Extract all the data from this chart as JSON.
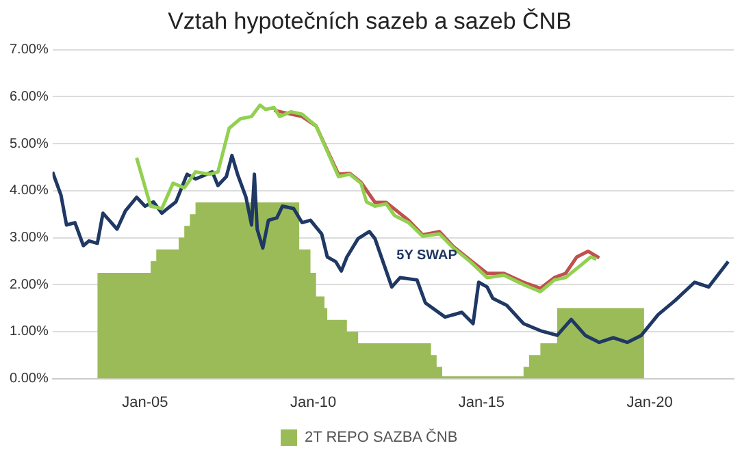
{
  "chart_data": {
    "type": "line",
    "title": "Vztah hypotečních sazeb a sazeb ČNB",
    "xlim": [
      "2002-04",
      "2022-07"
    ],
    "xticks": [
      {
        "value": "2005-01",
        "label": "Jan-05"
      },
      {
        "value": "2010-01",
        "label": "Jan-10"
      },
      {
        "value": "2015-01",
        "label": "Jan-15"
      },
      {
        "value": "2020-01",
        "label": "Jan-20"
      }
    ],
    "ylim": [
      0,
      7
    ],
    "yticks": [
      {
        "value": 0,
        "label": "0.00%"
      },
      {
        "value": 1,
        "label": "1.00%"
      },
      {
        "value": 2,
        "label": "2.00%"
      },
      {
        "value": 3,
        "label": "3.00%"
      },
      {
        "value": 4,
        "label": "4.00%"
      },
      {
        "value": 5,
        "label": "5.00%"
      },
      {
        "value": 6,
        "label": "6.00%"
      },
      {
        "value": 7,
        "label": "7.00%"
      }
    ],
    "grid": "y",
    "legend": "bottom",
    "annotations": [
      "5Y SWAP"
    ],
    "series": [
      {
        "name": "2T REPO SAZBA ČNB",
        "type": "area",
        "color": "#9bbb59",
        "x": [
          "2003-08",
          "2003-08",
          "2005-03",
          "2005-03",
          "2005-05",
          "2005-05",
          "2006-01",
          "2006-01",
          "2006-03",
          "2006-03",
          "2006-05",
          "2006-05",
          "2006-07",
          "2006-07",
          "2009-08",
          "2009-08",
          "2009-12",
          "2009-12",
          "2010-02",
          "2010-02",
          "2010-05",
          "2010-05",
          "2010-06",
          "2010-06",
          "2011-01",
          "2011-01",
          "2011-05",
          "2011-05",
          "2013-07",
          "2013-07",
          "2013-09",
          "2013-09",
          "2013-11",
          "2013-11",
          "2016-04",
          "2016-04",
          "2016-06",
          "2016-06",
          "2016-10",
          "2016-10",
          "2017-04",
          "2017-04",
          "2019-11",
          "2019-11"
        ],
        "values": [
          0,
          2.25,
          2.25,
          2.5,
          2.5,
          2.75,
          2.75,
          3.0,
          3.0,
          3.25,
          3.25,
          3.5,
          3.5,
          3.75,
          3.75,
          2.75,
          2.75,
          2.25,
          2.25,
          1.75,
          1.75,
          1.5,
          1.5,
          1.25,
          1.25,
          1.0,
          1.0,
          0.75,
          0.75,
          0.5,
          0.5,
          0.25,
          0.25,
          0.05,
          0.05,
          0.25,
          0.25,
          0.5,
          0.5,
          0.75,
          0.75,
          1.5,
          1.5,
          0
        ]
      },
      {
        "color": "#1f3864",
        "x": [
          "2002-04",
          "2002-07",
          "2002-09",
          "2002-12",
          "2003-03",
          "2003-05",
          "2003-08",
          "2003-10",
          "2004-01",
          "2004-03",
          "2004-06",
          "2004-10",
          "2005-01",
          "2005-04",
          "2005-07",
          "2005-09",
          "2005-12",
          "2006-04",
          "2006-07",
          "2007-01",
          "2007-03",
          "2007-06",
          "2007-08",
          "2007-10",
          "2008-01",
          "2008-03",
          "2008-04",
          "2008-05",
          "2008-07",
          "2008-09",
          "2008-12",
          "2009-02",
          "2009-06",
          "2009-09",
          "2009-12",
          "2010-04",
          "2010-06",
          "2010-09",
          "2010-11",
          "2011-01",
          "2011-05",
          "2011-09",
          "2011-11",
          "2012-05",
          "2012-08",
          "2013-02",
          "2013-05",
          "2013-12",
          "2014-06",
          "2014-10",
          "2014-12",
          "2015-03",
          "2015-05",
          "2015-10",
          "2016-04",
          "2016-10",
          "2017-04",
          "2017-09",
          "2018-02",
          "2018-07",
          "2018-12",
          "2019-05",
          "2019-10",
          "2020-04",
          "2020-10",
          "2021-05",
          "2021-10",
          "2022-05"
        ],
        "values": [
          4.4,
          3.91,
          3.27,
          3.32,
          2.83,
          2.93,
          2.88,
          3.52,
          3.32,
          3.18,
          3.57,
          3.86,
          3.67,
          3.76,
          3.52,
          3.62,
          3.76,
          4.35,
          4.25,
          4.4,
          4.11,
          4.3,
          4.75,
          4.35,
          3.86,
          3.27,
          4.35,
          3.18,
          2.78,
          3.37,
          3.42,
          3.67,
          3.62,
          3.32,
          3.37,
          3.08,
          2.59,
          2.49,
          2.29,
          2.59,
          2.98,
          3.13,
          2.98,
          1.95,
          2.15,
          2.1,
          1.61,
          1.31,
          1.41,
          1.17,
          2.05,
          1.95,
          1.71,
          1.56,
          1.17,
          1.02,
          0.92,
          1.26,
          0.92,
          0.77,
          0.87,
          0.77,
          0.92,
          1.36,
          1.66,
          2.05,
          1.95,
          2.49
        ]
      },
      {
        "color": "#c0504d",
        "x": [
          "2008-11",
          "2009-05",
          "2009-09",
          "2010-02",
          "2010-06",
          "2010-10",
          "2011-02",
          "2011-06",
          "2011-11",
          "2012-03",
          "2012-11",
          "2013-04",
          "2013-10",
          "2014-03",
          "2014-09",
          "2015-03",
          "2015-09",
          "2016-04",
          "2016-10",
          "2017-03",
          "2017-07",
          "2017-11",
          "2018-03",
          "2018-07"
        ],
        "values": [
          5.71,
          5.63,
          5.58,
          5.38,
          4.86,
          4.35,
          4.37,
          4.18,
          3.75,
          3.75,
          3.37,
          3.06,
          3.13,
          2.81,
          2.52,
          2.24,
          2.24,
          2.05,
          1.92,
          2.15,
          2.24,
          2.59,
          2.71,
          2.57
        ]
      },
      {
        "color": "#92d050",
        "x": [
          "2004-10",
          "2005-03",
          "2005-07",
          "2005-11",
          "2006-03",
          "2006-07",
          "2006-12",
          "2007-03",
          "2007-07",
          "2007-11",
          "2008-03",
          "2008-06",
          "2008-08",
          "2008-11",
          "2009-01",
          "2009-05",
          "2009-09",
          "2010-02",
          "2010-06",
          "2010-10",
          "2011-02",
          "2011-06",
          "2011-08",
          "2011-11",
          "2012-03",
          "2012-06",
          "2012-11",
          "2013-04",
          "2013-10",
          "2014-03",
          "2014-09",
          "2015-03",
          "2015-09",
          "2016-04",
          "2016-10",
          "2017-03",
          "2017-07",
          "2018-01",
          "2018-04",
          "2018-06"
        ],
        "values": [
          4.7,
          3.67,
          3.62,
          4.16,
          4.06,
          4.4,
          4.35,
          4.4,
          5.33,
          5.53,
          5.58,
          5.82,
          5.73,
          5.77,
          5.58,
          5.68,
          5.63,
          5.38,
          4.84,
          4.3,
          4.35,
          4.16,
          3.76,
          3.67,
          3.72,
          3.47,
          3.32,
          3.03,
          3.08,
          2.78,
          2.49,
          2.15,
          2.2,
          2.0,
          1.85,
          2.1,
          2.15,
          2.44,
          2.59,
          2.54
        ]
      }
    ]
  }
}
